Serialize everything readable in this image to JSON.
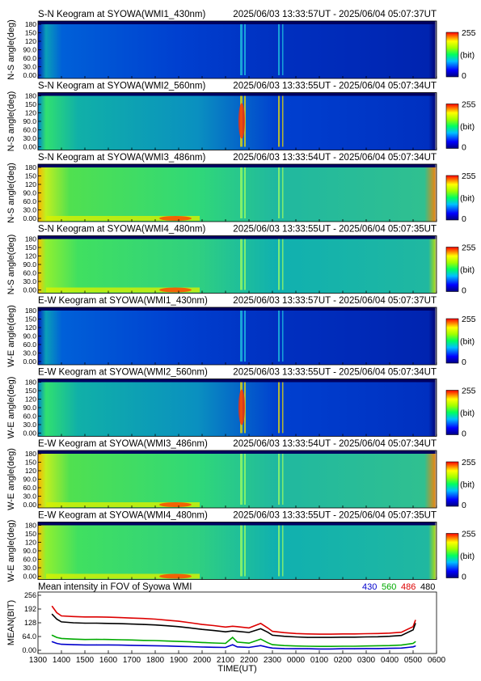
{
  "colors": {
    "c430": "#0000cc",
    "c560": "#00aa00",
    "c486": "#dd0000",
    "c480": "#000000"
  },
  "keograms": [
    {
      "title": "S-N Keogram at SYOWA(WMI1_430nm)",
      "time_range": "2025/06/03 13:33:57UT - 2025/06/04 05:07:37UT",
      "ylabel": "N-S angle(deg)",
      "kind": "weak"
    },
    {
      "title": "S-N Keogram at SYOWA(WMI2_560nm)",
      "time_range": "2025/06/03 13:33:55UT - 2025/06/04 05:07:34UT",
      "ylabel": "N-S angle(deg)",
      "kind": "green"
    },
    {
      "title": "S-N Keogram at SYOWA(WMI3_486nm)",
      "time_range": "2025/06/03 13:33:54UT - 2025/06/04 05:07:34UT",
      "ylabel": "N-S angle(deg)",
      "kind": "bright"
    },
    {
      "title": "S-N Keogram at SYOWA(WMI4_480nm)",
      "time_range": "2025/06/03 13:33:55UT - 2025/06/04 05:07:35UT",
      "ylabel": "N-S angle(deg)",
      "kind": "bright2"
    },
    {
      "title": "E-W Keogram at SYOWA(WMI1_430nm)",
      "time_range": "2025/06/03 13:33:57UT - 2025/06/04 05:07:37UT",
      "ylabel": "W-E angle(deg)",
      "kind": "weak"
    },
    {
      "title": "E-W Keogram at SYOWA(WMI2_560nm)",
      "time_range": "2025/06/03 13:33:55UT - 2025/06/04 05:07:34UT",
      "ylabel": "W-E angle(deg)",
      "kind": "green"
    },
    {
      "title": "E-W Keogram at SYOWA(WMI3_486nm)",
      "time_range": "2025/06/03 13:33:54UT - 2025/06/04 05:07:34UT",
      "ylabel": "W-E angle(deg)",
      "kind": "bright"
    },
    {
      "title": "E-W Keogram at SYOWA(WMI4_480nm)",
      "time_range": "2025/06/03 13:33:55UT - 2025/06/04 05:07:35UT",
      "ylabel": "W-E angle(deg)",
      "kind": "bright2"
    }
  ],
  "yticks": [
    "180",
    "150",
    "120",
    "90.0",
    "60.0",
    "30.0",
    "0.00"
  ],
  "colorbar": {
    "max": "255",
    "unit": "(bit)",
    "min": "0"
  },
  "mean_panel": {
    "title": "Mean intensity in FOV of Syowa WMI",
    "legend": [
      "430",
      "560",
      "486",
      "480"
    ],
    "ylabel": "MEAN(BIT)",
    "yticks": [
      "256",
      "192",
      "128",
      "64.0",
      "0.00"
    ],
    "xlabel": "TIME(UT)",
    "xticks": [
      "1300",
      "1400",
      "1500",
      "1600",
      "1700",
      "1800",
      "1900",
      "2000",
      "2100",
      "2200",
      "2300",
      "0000",
      "0100",
      "0200",
      "0300",
      "0400",
      "0500",
      "0600"
    ]
  },
  "chart_data": {
    "type": "line",
    "title": "Mean intensity in FOV of Syowa WMI",
    "xlabel": "TIME(UT)",
    "ylabel": "MEAN(BIT)",
    "x_unit": "hours after 1300 UT",
    "ylim": [
      0,
      256
    ],
    "x": [
      0.6,
      0.8,
      1.0,
      1.5,
      2.0,
      2.5,
      3.0,
      3.5,
      4.0,
      4.5,
      5.0,
      5.5,
      6.0,
      6.5,
      7.0,
      7.5,
      8.0,
      8.3,
      8.5,
      9.0,
      9.5,
      9.8,
      10.0,
      10.5,
      11.0,
      11.5,
      12.0,
      12.5,
      13.0,
      13.5,
      14.0,
      14.5,
      15.0,
      15.5,
      16.0,
      16.1
    ],
    "series": [
      {
        "name": "430",
        "values": [
          40,
          32,
          28,
          26,
          25,
          25,
          25,
          24,
          23,
          22,
          21,
          20,
          18,
          17,
          15,
          14,
          13,
          26,
          16,
          13,
          22,
          14,
          10,
          8,
          7,
          7,
          6,
          6,
          7,
          7,
          8,
          8,
          9,
          10,
          16,
          20
        ]
      },
      {
        "name": "560",
        "values": [
          70,
          60,
          55,
          52,
          50,
          51,
          50,
          49,
          48,
          46,
          45,
          43,
          41,
          39,
          36,
          34,
          32,
          60,
          38,
          33,
          52,
          35,
          26,
          22,
          20,
          19,
          18,
          18,
          19,
          19,
          20,
          21,
          22,
          24,
          32,
          40
        ]
      },
      {
        "name": "486",
        "values": [
          205,
          175,
          160,
          157,
          155,
          155,
          154,
          152,
          150,
          148,
          145,
          140,
          135,
          128,
          120,
          115,
          108,
          112,
          110,
          104,
          125,
          104,
          88,
          82,
          78,
          76,
          75,
          75,
          76,
          76,
          77,
          78,
          80,
          84,
          110,
          140
        ]
      },
      {
        "name": "480",
        "values": [
          168,
          145,
          132,
          128,
          126,
          126,
          125,
          124,
          122,
          120,
          118,
          114,
          110,
          104,
          97,
          92,
          86,
          90,
          88,
          83,
          100,
          84,
          70,
          65,
          62,
          60,
          60,
          60,
          61,
          61,
          62,
          63,
          65,
          69,
          95,
          125
        ]
      }
    ]
  }
}
